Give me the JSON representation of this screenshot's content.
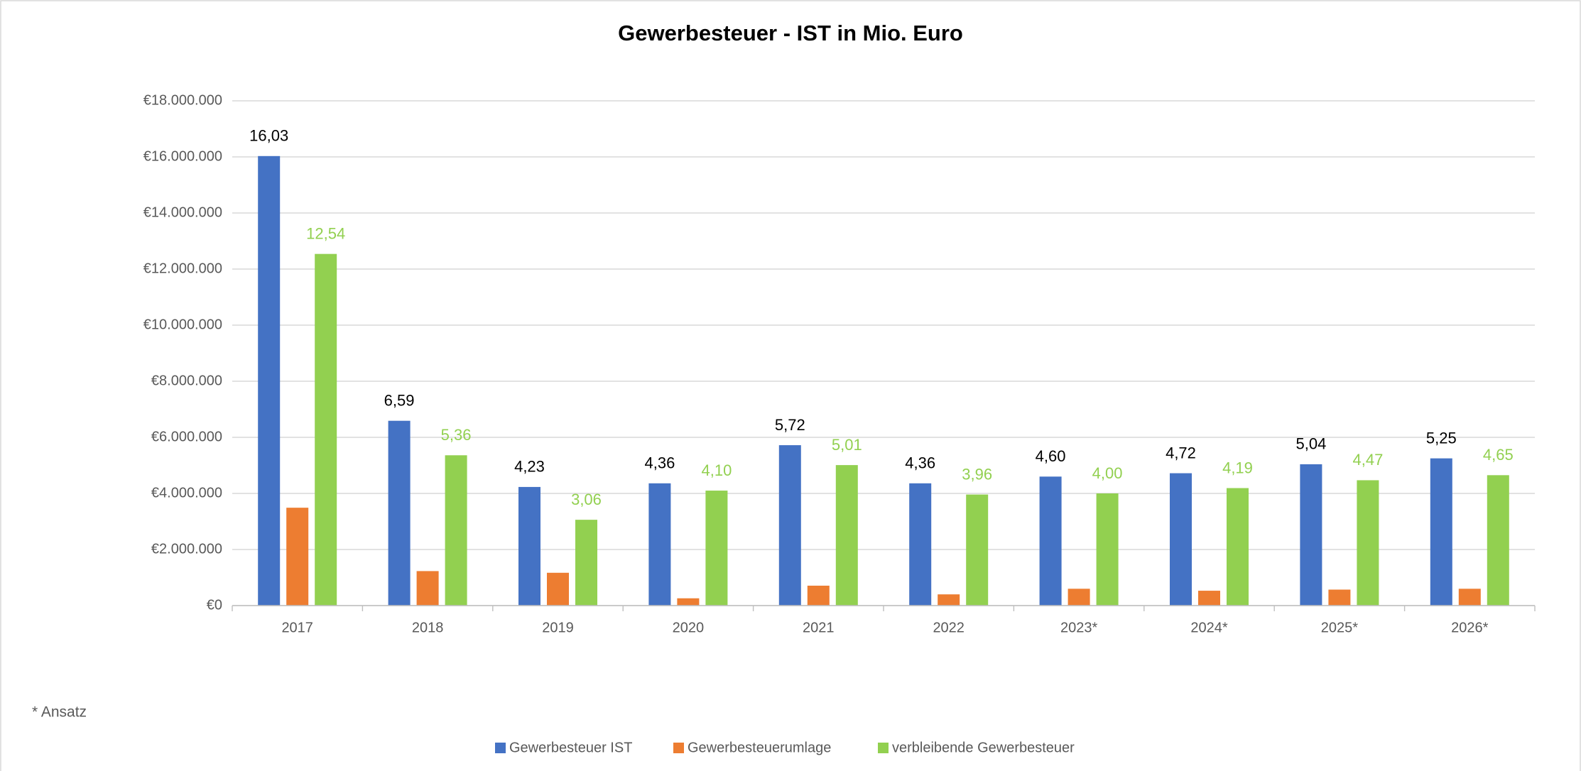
{
  "chart_data": {
    "type": "bar",
    "title": "Gewerbesteuer - IST in Mio. Euro",
    "categories": [
      "2017",
      "2018",
      "2019",
      "2020",
      "2021",
      "2022",
      "2023*",
      "2024*",
      "2025*",
      "2026*"
    ],
    "series": [
      {
        "name": "Gewerbesteuer IST",
        "color": "#4472c4",
        "values": [
          16030000,
          6590000,
          4230000,
          4360000,
          5720000,
          4360000,
          4600000,
          4720000,
          5040000,
          5250000
        ],
        "value_labels": [
          "16,03",
          "6,59",
          "4,23",
          "4,36",
          "5,72",
          "4,36",
          "4,60",
          "4,72",
          "5,04",
          "5,25"
        ],
        "label_color": "#000000"
      },
      {
        "name": "Gewerbesteuerumlage",
        "color": "#ed7d31",
        "values": [
          3490000,
          1230000,
          1170000,
          260000,
          710000,
          400000,
          600000,
          530000,
          570000,
          600000
        ]
      },
      {
        "name": "verbleibende Gewerbesteuer",
        "color": "#92d050",
        "values": [
          12540000,
          5360000,
          3060000,
          4100000,
          5010000,
          3960000,
          4000000,
          4190000,
          4470000,
          4650000
        ],
        "value_labels": [
          "12,54",
          "5,36",
          "3,06",
          "4,10",
          "5,01",
          "3,96",
          "4,00",
          "4,19",
          "4,47",
          "4,65"
        ],
        "label_color": "#92d050"
      }
    ],
    "ylim": [
      0,
      18000000
    ],
    "yticks": [
      {
        "value": 0,
        "label": "€0"
      },
      {
        "value": 2000000,
        "label": "€2.000.000"
      },
      {
        "value": 4000000,
        "label": "€4.000.000"
      },
      {
        "value": 6000000,
        "label": "€6.000.000"
      },
      {
        "value": 8000000,
        "label": "€8.000.000"
      },
      {
        "value": 10000000,
        "label": "€10.000.000"
      },
      {
        "value": 12000000,
        "label": "€12.000.000"
      },
      {
        "value": 14000000,
        "label": "€14.000.000"
      },
      {
        "value": 16000000,
        "label": "€16.000.000"
      },
      {
        "value": 18000000,
        "label": "€18.000.000"
      }
    ],
    "grid": true,
    "legend": "bottom",
    "annotation": "* Ansatz"
  }
}
